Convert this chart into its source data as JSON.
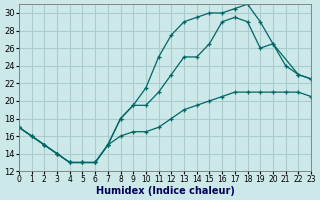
{
  "xlabel": "Humidex (Indice chaleur)",
  "background_color": "#cce8e8",
  "grid_color": "#aacccc",
  "line_color": "#006666",
  "xlim": [
    0,
    23
  ],
  "ylim": [
    12,
    31
  ],
  "xticks": [
    0,
    1,
    2,
    3,
    4,
    5,
    6,
    7,
    8,
    9,
    10,
    11,
    12,
    13,
    14,
    15,
    16,
    17,
    18,
    19,
    20,
    21,
    22,
    23
  ],
  "yticks": [
    12,
    14,
    16,
    18,
    20,
    22,
    24,
    26,
    28,
    30
  ],
  "curve_top_x": [
    0,
    1,
    2,
    3,
    4,
    5,
    6,
    7,
    8,
    9,
    10,
    11,
    12,
    13,
    14,
    15,
    16,
    17,
    18,
    19,
    20,
    22,
    23
  ],
  "curve_top_y": [
    17,
    16,
    15,
    14,
    13,
    13,
    13,
    15,
    18,
    19.5,
    21.5,
    25,
    27.5,
    29,
    29.5,
    30,
    30,
    30.5,
    31,
    29,
    26.5,
    23,
    22.5
  ],
  "curve_mid_x": [
    0,
    1,
    2,
    3,
    4,
    5,
    6,
    7,
    8,
    9,
    10,
    11,
    12,
    13,
    14,
    15,
    16,
    17,
    18,
    19,
    20,
    21,
    22,
    23
  ],
  "curve_mid_y": [
    17,
    16,
    15,
    14,
    13,
    13,
    13,
    15,
    18,
    19.5,
    19.5,
    21,
    23,
    25,
    25,
    26.5,
    29,
    29.5,
    29,
    26,
    26.5,
    24,
    23,
    22.5
  ],
  "curve_bot_x": [
    0,
    1,
    2,
    3,
    4,
    5,
    6,
    7,
    8,
    9,
    10,
    11,
    12,
    13,
    14,
    15,
    16,
    17,
    18,
    19,
    20,
    21,
    22,
    23
  ],
  "curve_bot_y": [
    17,
    16,
    15,
    14,
    13,
    13,
    13,
    15,
    16,
    16.5,
    16.5,
    17,
    18,
    19,
    19.5,
    20,
    20.5,
    21,
    21,
    21,
    21,
    21,
    21,
    20.5
  ]
}
